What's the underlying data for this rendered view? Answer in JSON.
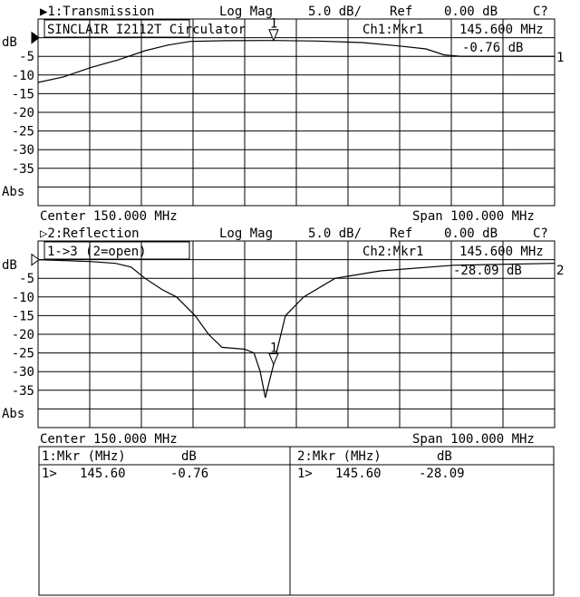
{
  "channels": [
    {
      "header": "▶1:Transmission",
      "format": "Log Mag",
      "scale": "5.0 dB/",
      "ref_label": "Ref",
      "ref": "0.00 dB",
      "cal": "C?",
      "title_box": "SINCLAIR I2112T Circulator",
      "mkr_label": "Ch1:Mkr1",
      "mkr_freq": "145.600 MHz",
      "mkr_value": "-0.76 dB",
      "unit": "dB",
      "y_ticks": [
        "-5",
        "-10",
        "-15",
        "-20",
        "-25",
        "-30",
        "-35"
      ],
      "abs": "Abs",
      "trace_num": "1",
      "marker_num": "1",
      "center": "Center 150.000 MHz",
      "span": "Span 100.000 MHz",
      "trace": [
        [
          100,
          -12
        ],
        [
          104.9,
          -10.5
        ],
        [
          110.2,
          -8
        ],
        [
          115.4,
          -6
        ],
        [
          120.7,
          -3.5
        ],
        [
          125.1,
          -2
        ],
        [
          129.5,
          -1
        ],
        [
          136.5,
          -0.8
        ],
        [
          145.6,
          -0.76
        ],
        [
          154,
          -0.9
        ],
        [
          162.8,
          -1.3
        ],
        [
          169.8,
          -2.2
        ],
        [
          175.1,
          -3
        ],
        [
          178.6,
          -4.6
        ],
        [
          182,
          -5
        ],
        [
          200,
          -5
        ]
      ]
    },
    {
      "header": "▷2:Reflection",
      "format": "Log Mag",
      "scale": "5.0 dB/",
      "ref_label": "Ref",
      "ref": "0.00 dB",
      "cal": "C?",
      "title_box": "1->3 (2=open)",
      "mkr_label": "Ch2:Mkr1",
      "mkr_freq": "145.600 MHz",
      "mkr_value": "-28.09 dB",
      "unit": "dB",
      "y_ticks": [
        "-5",
        "-10",
        "-15",
        "-20",
        "-25",
        "-30",
        "-35"
      ],
      "abs": "Abs",
      "trace_num": "2",
      "marker_num": "1",
      "center": "Center 150.000 MHz",
      "span": "Span 100.000 MHz",
      "trace": [
        [
          100,
          0
        ],
        [
          110,
          -0.5
        ],
        [
          115,
          -1
        ],
        [
          118,
          -2
        ],
        [
          120.7,
          -5
        ],
        [
          124,
          -8
        ],
        [
          126.8,
          -10
        ],
        [
          130.4,
          -15
        ],
        [
          133,
          -20
        ],
        [
          135.6,
          -23.5
        ],
        [
          140,
          -24
        ],
        [
          141.8,
          -25
        ],
        [
          143,
          -30
        ],
        [
          144,
          -37
        ],
        [
          144.7,
          -33
        ],
        [
          145.6,
          -28.09
        ],
        [
          147.9,
          -15
        ],
        [
          151.4,
          -10
        ],
        [
          157.5,
          -5
        ],
        [
          166.3,
          -3
        ],
        [
          180.4,
          -1.5
        ],
        [
          200,
          -1
        ]
      ]
    }
  ],
  "axis": {
    "start_mhz": 100,
    "stop_mhz": 200,
    "top_db": 5,
    "bottom_db": -45
  },
  "marker_table": [
    {
      "header_mkr": "1:Mkr (MHz)",
      "header_unit": "dB",
      "row": {
        "num": "1>",
        "freq": "145.60",
        "value": "-0.76"
      }
    },
    {
      "header_mkr": "2:Mkr (MHz)",
      "header_unit": "dB",
      "row": {
        "num": "1>",
        "freq": "145.60",
        "value": "-28.09"
      }
    }
  ]
}
